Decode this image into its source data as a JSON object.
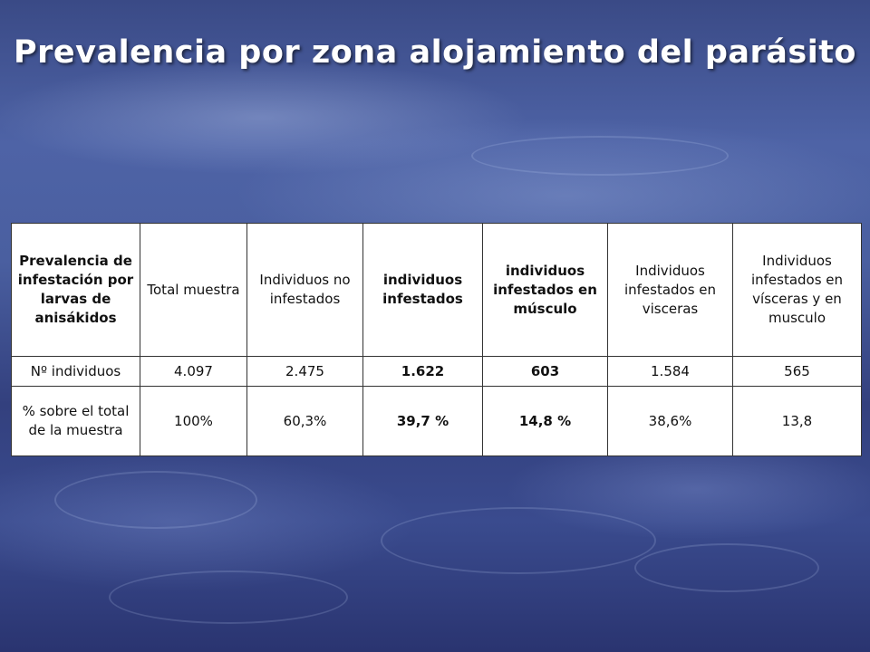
{
  "slide": {
    "title": "Prevalencia por zona alojamiento del parásito"
  },
  "table": {
    "headers": [
      "Prevalencia de infestación por larvas de anisákidos",
      "Total muestra",
      "Individuos no infestados",
      "individuos infestados",
      "individuos infestados en músculo",
      "Individuos infestados en visceras",
      "Individuos infestados en vísceras y en musculo"
    ],
    "rows": [
      [
        "Nº individuos",
        "4.097",
        "2.475",
        "1.622",
        "603",
        "1.584",
        "565"
      ],
      [
        "% sobre el total de la muestra",
        "100%",
        "60,3%",
        "39,7 %",
        "14,8 %",
        "38,6%",
        "13,8"
      ]
    ]
  }
}
